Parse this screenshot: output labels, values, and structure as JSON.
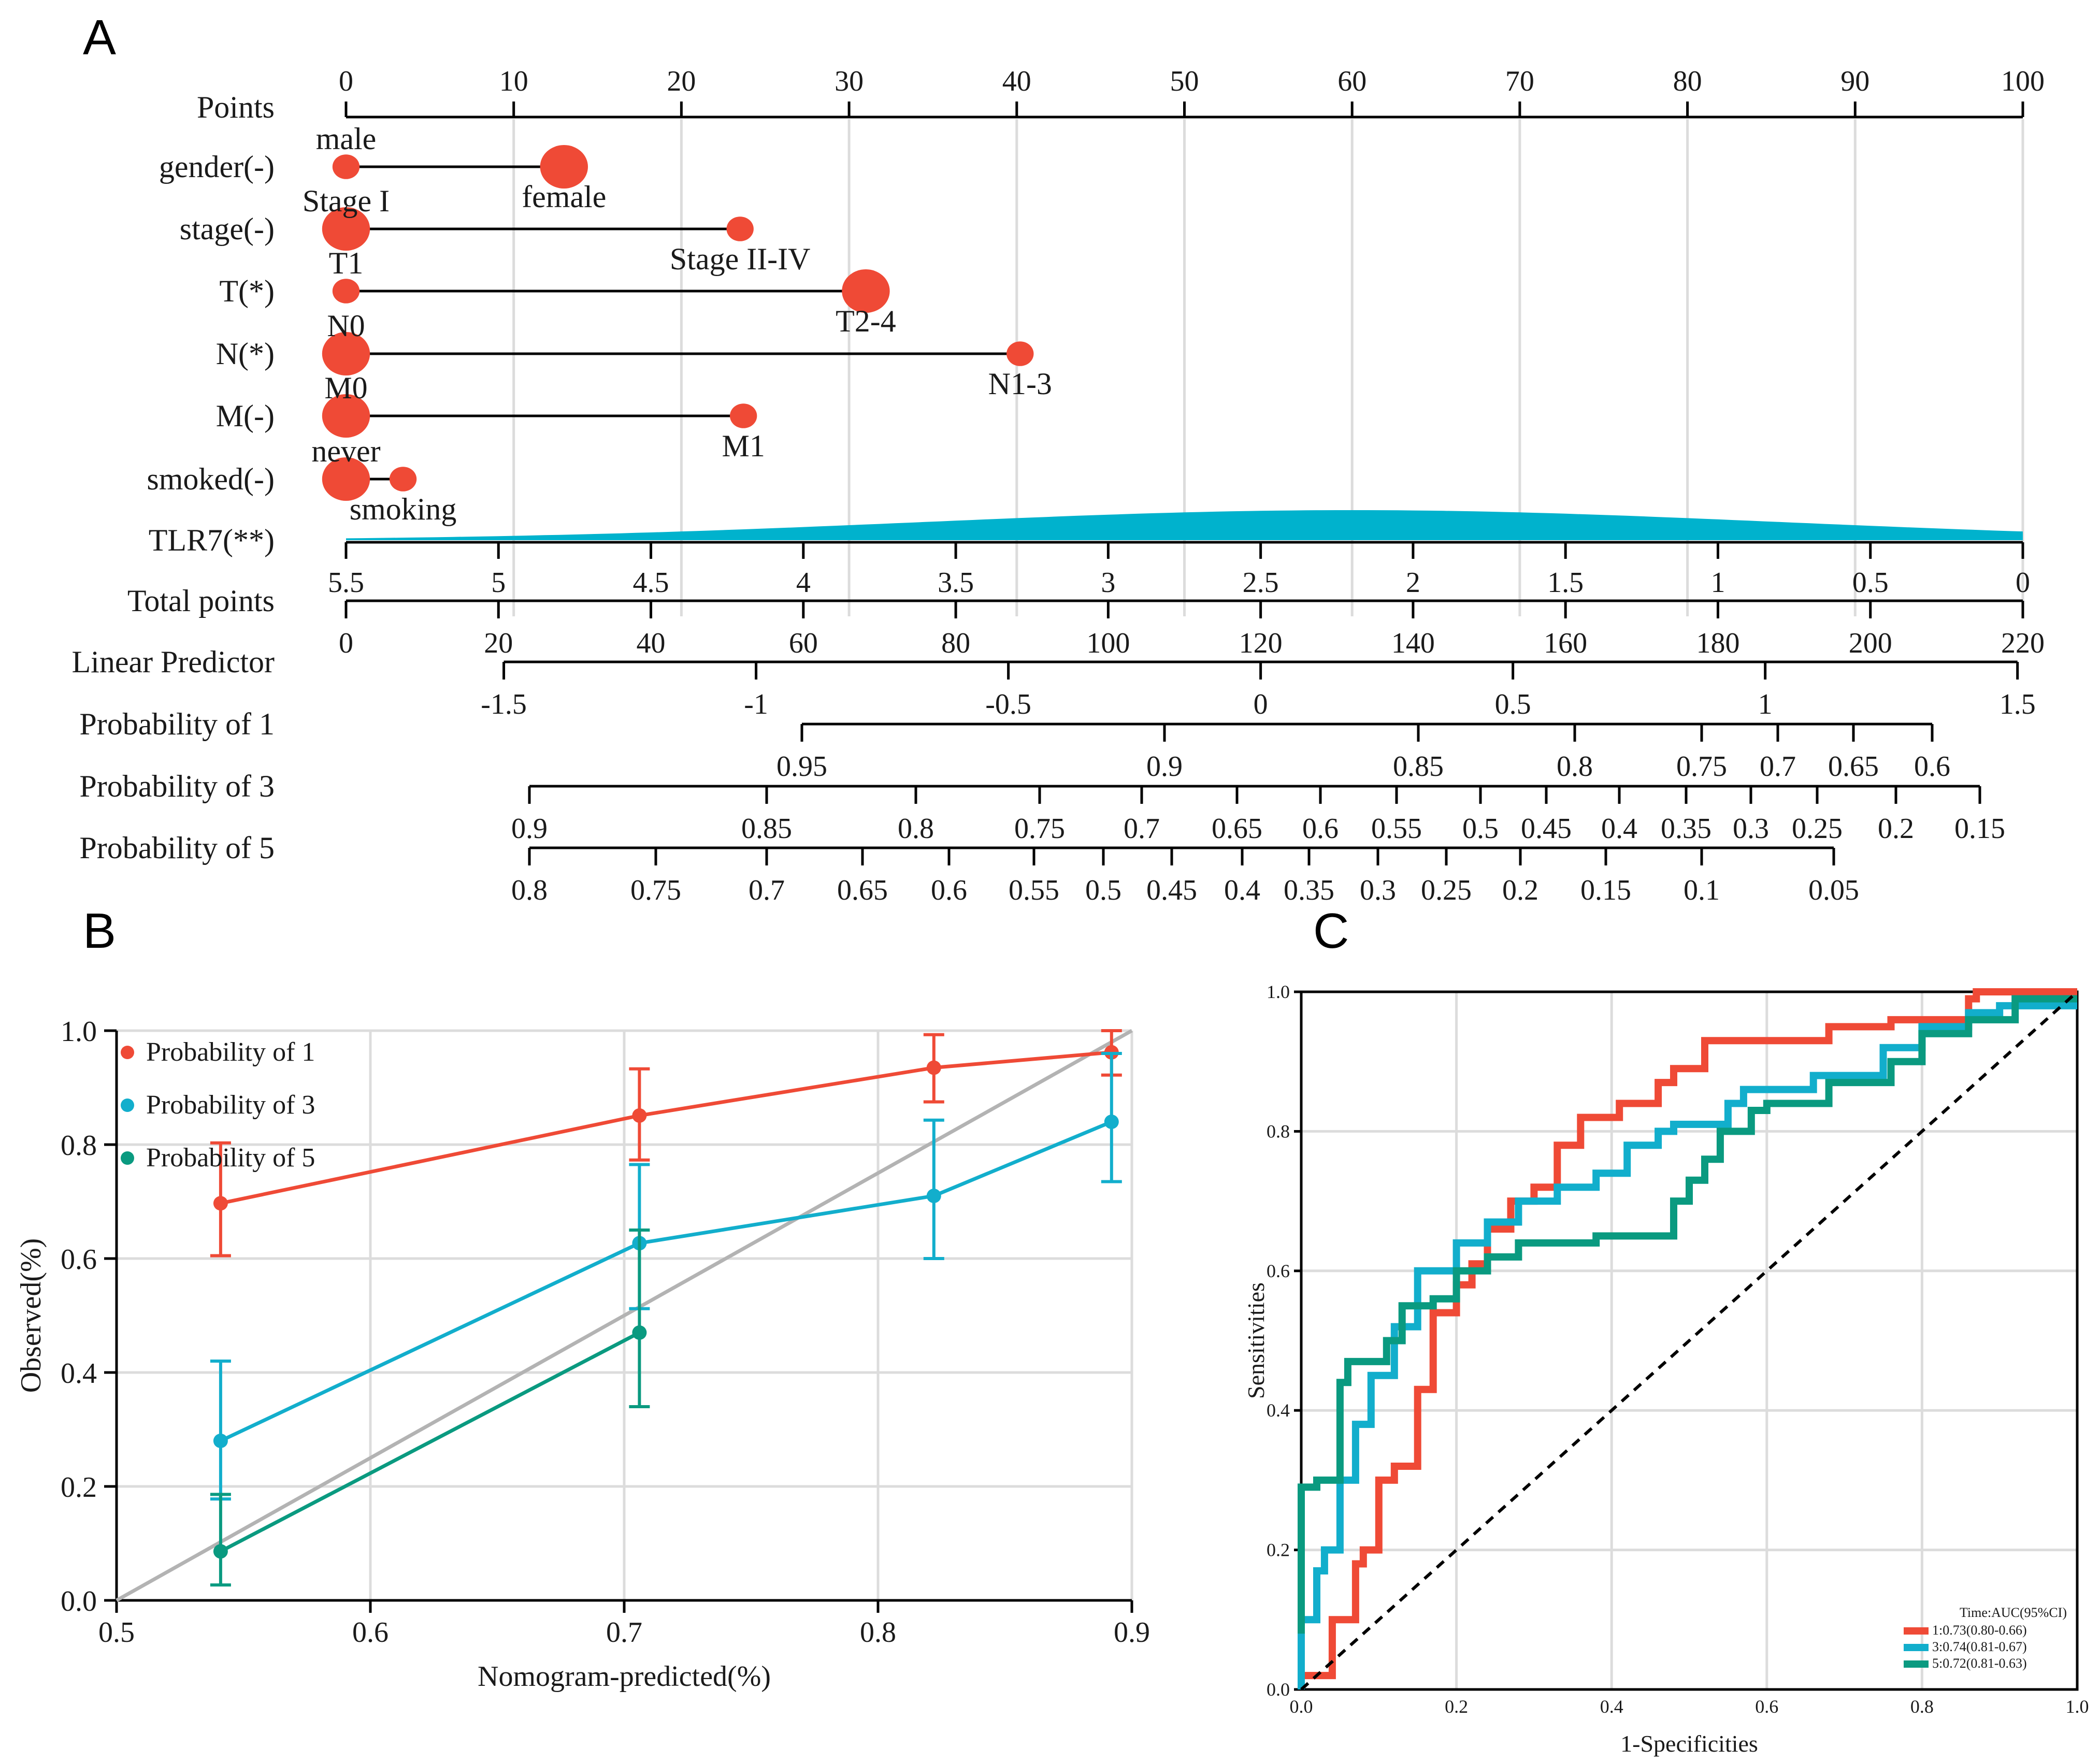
{
  "colors": {
    "red": "#ef4a36",
    "cyan": "#12aecc",
    "teal": "#0a9a80",
    "density": "#00b2cd",
    "diagonal": "#b3b3b3"
  },
  "chart_data": [
    {
      "type": "nomogram",
      "panel": "A",
      "points_axis": {
        "label": "Points",
        "ticks": [
          0,
          10,
          20,
          30,
          40,
          50,
          60,
          70,
          80,
          90,
          100
        ]
      },
      "variables": [
        {
          "label": "gender(-)",
          "levels": [
            {
              "name": "male",
              "points": 0,
              "weight": 0.3
            },
            {
              "name": "female",
              "points": 13,
              "weight": 1.0
            }
          ]
        },
        {
          "label": "stage(-)",
          "levels": [
            {
              "name": "Stage I",
              "points": 0,
              "weight": 1.0
            },
            {
              "name": "Stage II-IV",
              "points": 23.5,
              "weight": 0.3
            }
          ]
        },
        {
          "label": "T(*)",
          "levels": [
            {
              "name": "T1",
              "points": 0,
              "weight": 0.3
            },
            {
              "name": "T2-4",
              "points": 31,
              "weight": 1.0
            }
          ]
        },
        {
          "label": "N(*)",
          "levels": [
            {
              "name": "N0",
              "points": 0,
              "weight": 1.0
            },
            {
              "name": "N1-3",
              "points": 40.2,
              "weight": 0.3
            }
          ]
        },
        {
          "label": "M(-)",
          "levels": [
            {
              "name": "M0",
              "points": 0,
              "weight": 1.0
            },
            {
              "name": "M1",
              "points": 23.7,
              "weight": 0.3
            }
          ]
        },
        {
          "label": "smoked(-)",
          "levels": [
            {
              "name": "never",
              "points": 0,
              "weight": 1.0
            },
            {
              "name": "smoking",
              "points": 3.4,
              "weight": 0.3
            }
          ]
        }
      ],
      "continuous": {
        "label": "TLR7(**)",
        "scale_ticks": [
          "5.5",
          "5",
          "4.5",
          "4",
          "3.5",
          "3",
          "2.5",
          "2",
          "1.5",
          "1",
          "0.5",
          "0"
        ],
        "scale_range": [
          5.5,
          0
        ],
        "density_peak_value": 2.2
      },
      "total_points": {
        "label": "Total points",
        "ticks": [
          0,
          20,
          40,
          60,
          80,
          100,
          120,
          140,
          160,
          180,
          200,
          220
        ],
        "range": [
          0,
          220
        ]
      },
      "linear_predictor": {
        "label": "Linear Predictor",
        "ticks": [
          "-1.5",
          "-1",
          "-0.5",
          "0",
          "0.5",
          "1",
          "1.5"
        ],
        "ticks_num": [
          -1.5,
          -1,
          -0.5,
          0,
          0.5,
          1,
          1.5
        ],
        "tp_at_0": 120,
        "tp_per_unit": 66.2
      },
      "probability_axes": [
        {
          "label": "Probability of 1",
          "ticks": [
            "0.95",
            "0.9",
            "0.85",
            "0.8",
            "0.75",
            "0.7",
            "0.65",
            "0.6"
          ]
        },
        {
          "label": "Probability of 3",
          "ticks": [
            "0.9",
            "0.85",
            "0.8",
            "0.75",
            "0.7",
            "0.65",
            "0.6",
            "0.55",
            "0.5",
            "0.45",
            "0.4",
            "0.35",
            "0.3",
            "0.25",
            "0.2",
            "0.15"
          ]
        },
        {
          "label": "Probability of 5",
          "ticks": [
            "0.8",
            "0.75",
            "0.7",
            "0.65",
            "0.6",
            "0.55",
            "0.5",
            "0.45",
            "0.4",
            "0.35",
            "0.3",
            "0.25",
            "0.2",
            "0.15",
            "0.1",
            "0.05"
          ]
        }
      ]
    },
    {
      "type": "line",
      "panel": "B",
      "xlabel": "Nomogram-predicted(%)",
      "ylabel": "Observed(%)",
      "xlim": [
        0.5,
        0.9
      ],
      "ylim": [
        0.0,
        1.0
      ],
      "xticks": [
        "0.5",
        "0.6",
        "0.7",
        "0.8",
        "0.9"
      ],
      "yticks": [
        "0.0",
        "0.2",
        "0.4",
        "0.6",
        "0.8",
        "1.0"
      ],
      "series": [
        {
          "name": "Probability of 1",
          "color": "#ef4a36",
          "x": [
            0.541,
            0.706,
            0.822,
            0.892
          ],
          "y": [
            0.697,
            0.851,
            0.935,
            0.962
          ],
          "lower": [
            0.605,
            0.773,
            0.875,
            0.922
          ],
          "upper": [
            0.803,
            0.933,
            0.993,
            1.0
          ]
        },
        {
          "name": "Probability of 3",
          "color": "#12aecc",
          "x": [
            0.541,
            0.706,
            0.822,
            0.892
          ],
          "y": [
            0.28,
            0.627,
            0.71,
            0.84
          ],
          "lower": [
            0.178,
            0.512,
            0.6,
            0.735
          ],
          "upper": [
            0.42,
            0.765,
            0.843,
            0.96
          ]
        },
        {
          "name": "Probability of 5",
          "color": "#0a9a80",
          "x": [
            0.541,
            0.706
          ],
          "y": [
            0.086,
            0.47
          ],
          "lower": [
            0.027,
            0.34
          ],
          "upper": [
            0.186,
            0.65
          ]
        }
      ]
    },
    {
      "type": "line",
      "panel": "C",
      "xlabel": "1-Specificities",
      "ylabel": "Sensitivities",
      "xlim": [
        0,
        1
      ],
      "ylim": [
        0,
        1
      ],
      "xticks": [
        "0.0",
        "0.2",
        "0.4",
        "0.6",
        "0.8",
        "1.0"
      ],
      "yticks": [
        "0.0",
        "0.2",
        "0.4",
        "0.6",
        "0.8",
        "1.0"
      ],
      "legend_title": "Time:AUC(95%CI)",
      "series": [
        {
          "name": "1:0.73(0.80-0.66)",
          "color": "#ef4a36",
          "points": [
            [
              0,
              0.02
            ],
            [
              0.04,
              0.02
            ],
            [
              0.04,
              0.05
            ],
            [
              0.07,
              0.1
            ],
            [
              0.08,
              0.18
            ],
            [
              0.1,
              0.2
            ],
            [
              0.12,
              0.3
            ],
            [
              0.15,
              0.32
            ],
            [
              0.17,
              0.43
            ],
            [
              0.2,
              0.54
            ],
            [
              0.22,
              0.58
            ],
            [
              0.24,
              0.61
            ],
            [
              0.27,
              0.66
            ],
            [
              0.3,
              0.7
            ],
            [
              0.33,
              0.72
            ],
            [
              0.36,
              0.78
            ],
            [
              0.41,
              0.82
            ],
            [
              0.46,
              0.84
            ],
            [
              0.48,
              0.87
            ],
            [
              0.52,
              0.89
            ],
            [
              0.55,
              0.93
            ],
            [
              0.68,
              0.93
            ],
            [
              0.76,
              0.95
            ],
            [
              0.86,
              0.96
            ],
            [
              0.87,
              0.99
            ],
            [
              0.92,
              1.0
            ],
            [
              1.0,
              1.0
            ]
          ]
        },
        {
          "name": "3:0.74(0.81-0.67)",
          "color": "#12aecc",
          "points": [
            [
              0,
              0
            ],
            [
              0,
              0.05
            ],
            [
              0.02,
              0.1
            ],
            [
              0.03,
              0.17
            ],
            [
              0.05,
              0.2
            ],
            [
              0.07,
              0.3
            ],
            [
              0.09,
              0.38
            ],
            [
              0.12,
              0.45
            ],
            [
              0.15,
              0.52
            ],
            [
              0.2,
              0.6
            ],
            [
              0.24,
              0.64
            ],
            [
              0.28,
              0.67
            ],
            [
              0.33,
              0.7
            ],
            [
              0.38,
              0.72
            ],
            [
              0.42,
              0.74
            ],
            [
              0.46,
              0.78
            ],
            [
              0.48,
              0.8
            ],
            [
              0.5,
              0.81
            ],
            [
              0.55,
              0.81
            ],
            [
              0.57,
              0.84
            ],
            [
              0.66,
              0.86
            ],
            [
              0.75,
              0.88
            ],
            [
              0.8,
              0.92
            ],
            [
              0.86,
              0.95
            ],
            [
              0.9,
              0.97
            ],
            [
              1.0,
              0.98
            ]
          ]
        },
        {
          "name": "5:0.72(0.81-0.63)",
          "color": "#0a9a80",
          "points": [
            [
              0,
              0.08
            ],
            [
              0,
              0.27
            ],
            [
              0.02,
              0.29
            ],
            [
              0.05,
              0.3
            ],
            [
              0.06,
              0.44
            ],
            [
              0.11,
              0.47
            ],
            [
              0.13,
              0.5
            ],
            [
              0.17,
              0.55
            ],
            [
              0.2,
              0.56
            ],
            [
              0.24,
              0.6
            ],
            [
              0.28,
              0.62
            ],
            [
              0.38,
              0.64
            ],
            [
              0.43,
              0.65
            ],
            [
              0.48,
              0.65
            ],
            [
              0.48,
              0.68
            ],
            [
              0.5,
              0.7
            ],
            [
              0.52,
              0.73
            ],
            [
              0.54,
              0.76
            ],
            [
              0.58,
              0.8
            ],
            [
              0.6,
              0.83
            ],
            [
              0.68,
              0.84
            ],
            [
              0.76,
              0.87
            ],
            [
              0.8,
              0.9
            ],
            [
              0.86,
              0.94
            ],
            [
              0.92,
              0.96
            ],
            [
              1.0,
              0.99
            ]
          ]
        },
        {
          "name": "diagonal",
          "color": "#000000",
          "dashed": true,
          "points": [
            [
              0,
              0
            ],
            [
              1,
              1
            ]
          ]
        }
      ]
    }
  ]
}
